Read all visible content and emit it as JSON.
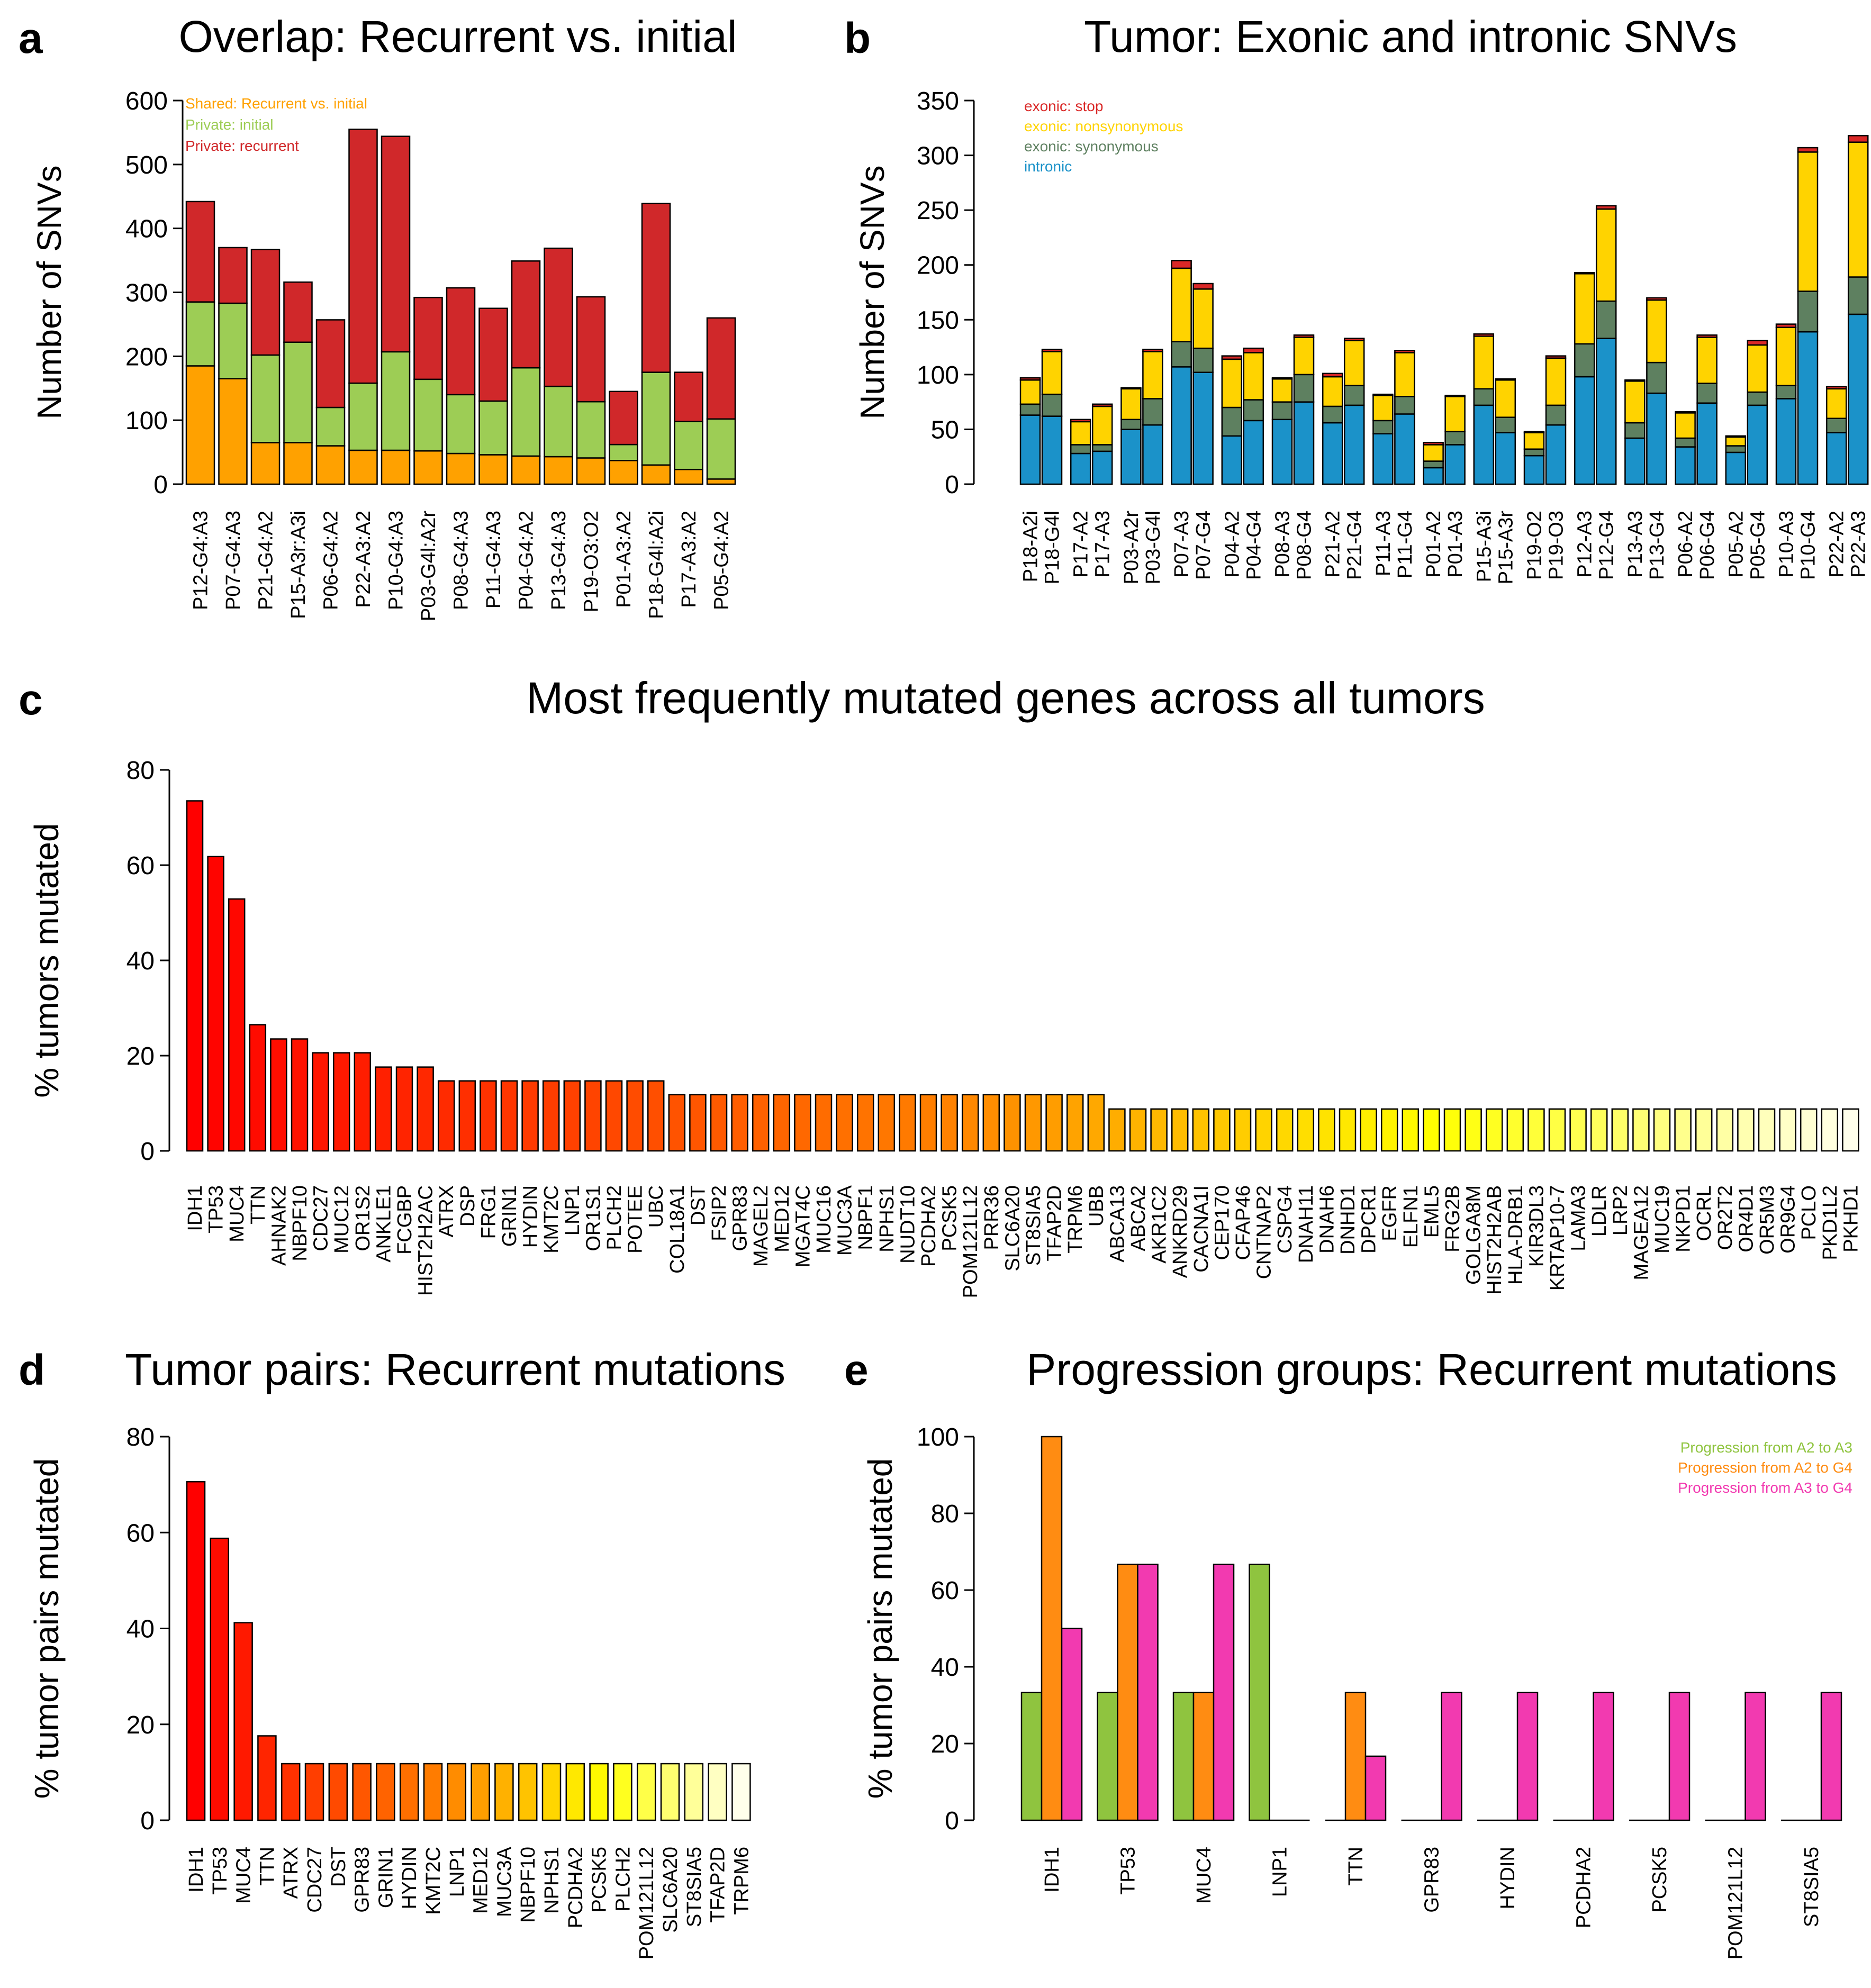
{
  "figure": {
    "a": "a",
    "b": "b",
    "c": "c",
    "d": "d",
    "e": "e"
  },
  "chart_data": [
    {
      "id": "a",
      "type": "bar",
      "stacked": true,
      "title": "Overlap: Recurrent vs. initial",
      "ylabel": "Number of SNVs",
      "ylim": [
        0,
        600
      ],
      "yticks": [
        0,
        100,
        200,
        300,
        400,
        500,
        600
      ],
      "categories": [
        "P12-G4:A3",
        "P07-G4:A3",
        "P21-G4:A2",
        "P15-A3r:A3i",
        "P06-G4:A2",
        "P22-A3:A2",
        "P10-G4:A3",
        "P03-G4l:A2r",
        "P08-G4:A3",
        "P11-G4:A3",
        "P04-G4:A2",
        "P13-G4:A3",
        "P19-O3:O2",
        "P01-A3:A2",
        "P18-G4l:A2i",
        "P17-A3:A2",
        "P05-G4:A2"
      ],
      "series": [
        {
          "name": "Shared: Recurrent vs. initial",
          "color": "#FFA100",
          "values": [
            185,
            165,
            65,
            65,
            60,
            53,
            53,
            52,
            48,
            46,
            44,
            43,
            41,
            37,
            30,
            23,
            8
          ]
        },
        {
          "name": "Private: initial",
          "color": "#9DCD55",
          "values": [
            100,
            118,
            137,
            157,
            60,
            105,
            154,
            112,
            92,
            84,
            138,
            110,
            88,
            25,
            145,
            75,
            94
          ]
        },
        {
          "name": "Private: recurrent",
          "color": "#D0282A",
          "values": [
            157,
            87,
            165,
            94,
            137,
            397,
            337,
            128,
            167,
            145,
            167,
            216,
            164,
            83,
            264,
            77,
            158
          ]
        }
      ]
    },
    {
      "id": "b",
      "type": "bar",
      "stacked": true,
      "title": "Tumor: Exonic and intronic SNVs",
      "ylabel": "Number of SNVs",
      "ylim": [
        0,
        350
      ],
      "yticks": [
        0,
        50,
        100,
        150,
        200,
        250,
        300,
        350
      ],
      "categories": [
        "P18-A2i",
        "P18-G4l",
        "P17-A2",
        "P17-A3",
        "P03-A2r",
        "P03-G4l",
        "P07-A3",
        "P07-G4",
        "P04-A2",
        "P04-G4",
        "P08-A3",
        "P08-G4",
        "P21-A2",
        "P21-G4",
        "P11-A3",
        "P11-G4",
        "P01-A2",
        "P01-A3",
        "P15-A3i",
        "P15-A3r",
        "P19-O2",
        "P19-O3",
        "P12-A3",
        "P12-G4",
        "P13-A3",
        "P13-G4",
        "P06-A2",
        "P06-G4",
        "P05-A2",
        "P05-G4",
        "P10-A3",
        "P10-G4",
        "P22-A2",
        "P22-A3"
      ],
      "series": [
        {
          "name": "intronic",
          "color": "#1B92C9",
          "values": [
            63,
            62,
            28,
            30,
            50,
            54,
            107,
            102,
            44,
            58,
            59,
            75,
            56,
            72,
            46,
            64,
            15,
            36,
            72,
            47,
            26,
            54,
            98,
            133,
            42,
            83,
            34,
            74,
            29,
            72,
            78,
            139,
            47,
            155
          ]
        },
        {
          "name": "exonic: synonymous",
          "color": "#5E8060",
          "values": [
            10,
            20,
            8,
            6,
            9,
            24,
            23,
            22,
            26,
            19,
            16,
            25,
            15,
            18,
            12,
            16,
            6,
            12,
            15,
            14,
            6,
            18,
            30,
            34,
            14,
            28,
            8,
            18,
            6,
            12,
            12,
            37,
            13,
            34
          ]
        },
        {
          "name": "exonic: nonsynonymous",
          "color": "#FFD300",
          "values": [
            22,
            39,
            21,
            35,
            28,
            43,
            67,
            54,
            44,
            43,
            21,
            34,
            27,
            41,
            23,
            40,
            15,
            32,
            48,
            34,
            15,
            43,
            64,
            84,
            38,
            57,
            23,
            42,
            8,
            43,
            53,
            127,
            27,
            123
          ]
        },
        {
          "name": "exonic: stop",
          "color": "#DA2827",
          "values": [
            2,
            2,
            2,
            2,
            1,
            2,
            7,
            5,
            3,
            4,
            1,
            2,
            3,
            2,
            1,
            2,
            2,
            1,
            2,
            1,
            1,
            2,
            1,
            3,
            1,
            2,
            1,
            2,
            1,
            4,
            3,
            4,
            2,
            6
          ]
        }
      ]
    },
    {
      "id": "c",
      "type": "bar",
      "title": "Most frequently mutated genes across all tumors",
      "ylabel": "% tumors mutated",
      "ylim": [
        0,
        80
      ],
      "yticks": [
        0,
        20,
        40,
        60,
        80
      ],
      "categories": [
        "IDH1",
        "TP53",
        "MUC4",
        "TTN",
        "AHNAK2",
        "NBPF10",
        "CDC27",
        "MUC12",
        "OR1S2",
        "ANKLE1",
        "FCGBP",
        "HIST2H2AC",
        "ATRX",
        "DSP",
        "FRG1",
        "GRIN1",
        "HYDIN",
        "KMT2C",
        "LNP1",
        "OR1S1",
        "PLCH2",
        "POTEE",
        "UBC",
        "COL18A1",
        "DST",
        "FSIP2",
        "GPR83",
        "MAGEL2",
        "MED12",
        "MGAT4C",
        "MUC16",
        "MUC3A",
        "NBPF1",
        "NPHS1",
        "NUDT10",
        "PCDHA2",
        "PCSK5",
        "POM121L12",
        "PRR36",
        "SLC6A20",
        "ST8SIA5",
        "TFAP2D",
        "TRPM6",
        "UBB",
        "ABCA13",
        "ABCA2",
        "AKR1C2",
        "ANKRD29",
        "CACNA1I",
        "CEP170",
        "CFAP46",
        "CNTNAP2",
        "CSPG4",
        "DNAH11",
        "DNAH6",
        "DNHD1",
        "DPCR1",
        "EGFR",
        "ELFN1",
        "EML5",
        "FRG2B",
        "GOLGA8M",
        "HIST2H2AB",
        "HLA-DRB1",
        "KIR3DL3",
        "KRTAP10-7",
        "LAMA3",
        "LDLR",
        "LRP2",
        "MAGEA12",
        "MUC19",
        "NKPD1",
        "OCRL",
        "OR2T2",
        "OR4D1",
        "OR5M3",
        "OR9G4",
        "PCLO",
        "PKD1L2",
        "PKHD1"
      ],
      "values": [
        73.5,
        61.8,
        52.9,
        26.5,
        23.5,
        23.5,
        20.6,
        20.6,
        20.6,
        17.6,
        17.6,
        17.6,
        14.7,
        14.7,
        14.7,
        14.7,
        14.7,
        14.7,
        14.7,
        14.7,
        14.7,
        14.7,
        14.7,
        11.8,
        11.8,
        11.8,
        11.8,
        11.8,
        11.8,
        11.8,
        11.8,
        11.8,
        11.8,
        11.8,
        11.8,
        11.8,
        11.8,
        11.8,
        11.8,
        11.8,
        11.8,
        11.8,
        11.8,
        11.8,
        8.8,
        8.8,
        8.8,
        8.8,
        8.8,
        8.8,
        8.8,
        8.8,
        8.8,
        8.8,
        8.8,
        8.8,
        8.8,
        8.8,
        8.8,
        8.8,
        8.8,
        8.8,
        8.8,
        8.8,
        8.8,
        8.8,
        8.8,
        8.8,
        8.8,
        8.8,
        8.8,
        8.8,
        8.8,
        8.8,
        8.8,
        8.8,
        8.8,
        8.8,
        8.8,
        8.8
      ]
    },
    {
      "id": "d",
      "type": "bar",
      "title": "Tumor pairs: Recurrent mutations",
      "ylabel": "% tumor pairs mutated",
      "ylim": [
        0,
        80
      ],
      "yticks": [
        0,
        20,
        40,
        60,
        80
      ],
      "categories": [
        "IDH1",
        "TP53",
        "MUC4",
        "TTN",
        "ATRX",
        "CDC27",
        "DST",
        "GPR83",
        "GRIN1",
        "HYDIN",
        "KMT2C",
        "LNP1",
        "MED12",
        "MUC3A",
        "NBPF10",
        "NPHS1",
        "PCDHA2",
        "PCSK5",
        "PLCH2",
        "POM121L12",
        "SLC6A20",
        "ST8SIA5",
        "TFAP2D",
        "TRPM6"
      ],
      "values": [
        70.6,
        58.8,
        41.2,
        17.6,
        11.8,
        11.8,
        11.8,
        11.8,
        11.8,
        11.8,
        11.8,
        11.8,
        11.8,
        11.8,
        11.8,
        11.8,
        11.8,
        11.8,
        11.8,
        11.8,
        11.8,
        11.8,
        11.8,
        11.8
      ]
    },
    {
      "id": "e",
      "type": "bar",
      "grouped": true,
      "title": "Progression groups: Recurrent mutations",
      "ylabel": "% tumor pairs mutated",
      "ylim": [
        0,
        100
      ],
      "yticks": [
        0,
        20,
        40,
        60,
        80,
        100
      ],
      "categories": [
        "IDH1",
        "TP53",
        "MUC4",
        "LNP1",
        "TTN",
        "GPR83",
        "HYDIN",
        "PCDHA2",
        "PCSK5",
        "POM121L12",
        "ST8SIA5"
      ],
      "series": [
        {
          "name": "Progression from A2 to A3",
          "color": "#8FC43F",
          "values": [
            33.3,
            33.3,
            33.3,
            66.7,
            0,
            0,
            0,
            0,
            0,
            0,
            0
          ]
        },
        {
          "name": "Progression from A2 to G4",
          "color": "#FF8C12",
          "values": [
            100,
            66.7,
            33.3,
            0,
            33.3,
            0,
            0,
            0,
            0,
            0,
            0
          ]
        },
        {
          "name": "Progression from A3 to G4",
          "color": "#F23AB0",
          "values": [
            50,
            66.7,
            66.7,
            0,
            16.7,
            33.3,
            33.3,
            33.3,
            33.3,
            33.3,
            33.3
          ]
        }
      ]
    }
  ]
}
